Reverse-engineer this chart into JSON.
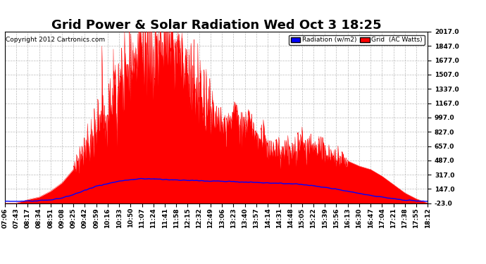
{
  "title": "Grid Power & Solar Radiation Wed Oct 3 18:25",
  "copyright": "Copyright 2012 Cartronics.com",
  "legend_labels": [
    "Radiation (w/m2)",
    "Grid  (AC Watts)"
  ],
  "legend_colors": [
    "#0000ff",
    "#ff0000"
  ],
  "yticks": [
    -23.0,
    147.0,
    317.0,
    487.0,
    657.0,
    827.0,
    997.0,
    1167.0,
    1337.0,
    1507.0,
    1677.0,
    1847.0,
    2017.0
  ],
  "ylim": [
    -23.0,
    2017.0
  ],
  "background_color": "#ffffff",
  "grid_color": "#aaaaaa",
  "xtick_labels": [
    "07:06",
    "07:43",
    "08:17",
    "08:34",
    "08:51",
    "09:08",
    "09:25",
    "09:42",
    "09:59",
    "10:16",
    "10:33",
    "10:50",
    "11:07",
    "11:24",
    "11:41",
    "11:58",
    "12:15",
    "12:32",
    "12:49",
    "13:06",
    "13:23",
    "13:40",
    "13:57",
    "14:14",
    "14:31",
    "14:48",
    "15:05",
    "15:22",
    "15:39",
    "15:56",
    "16:13",
    "16:30",
    "16:47",
    "17:04",
    "17:21",
    "17:38",
    "17:55",
    "18:12"
  ],
  "grid_data": [
    -20,
    -20,
    20,
    50,
    120,
    220,
    380,
    600,
    820,
    1050,
    1280,
    1600,
    1900,
    1750,
    2000,
    1820,
    1600,
    1400,
    1100,
    900,
    1050,
    950,
    850,
    700,
    580,
    620,
    700,
    650,
    580,
    520,
    480,
    420,
    380,
    300,
    200,
    100,
    30,
    -20
  ],
  "radiation_data": [
    0,
    0,
    5,
    10,
    20,
    40,
    80,
    130,
    180,
    210,
    240,
    260,
    270,
    265,
    260,
    255,
    250,
    245,
    240,
    238,
    235,
    230,
    225,
    220,
    215,
    210,
    200,
    185,
    165,
    145,
    120,
    95,
    70,
    50,
    30,
    15,
    5,
    0
  ],
  "title_fontsize": 13,
  "label_fontsize": 6.5,
  "copyright_fontsize": 6.5
}
